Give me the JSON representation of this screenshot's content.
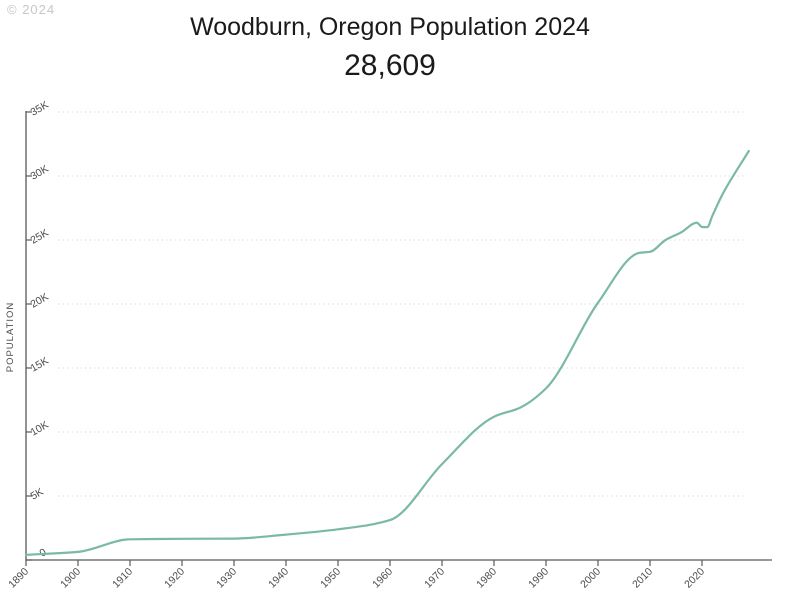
{
  "watermark": "© 2024",
  "header": {
    "title": "Woodburn, Oregon Population 2024",
    "current_population": "28,609"
  },
  "chart_data": {
    "type": "line",
    "title": "Woodburn, Oregon Population 2024",
    "subtitle_value": "28,609",
    "ylabel": "POPULATION",
    "xlabel": "",
    "grid": "horizontal-dotted",
    "legend_position": "none",
    "xlim": [
      1890,
      2030
    ],
    "ylim": [
      0,
      35000
    ],
    "x_ticks": [
      1890,
      1900,
      1910,
      1920,
      1930,
      1940,
      1950,
      1960,
      1970,
      1980,
      1990,
      2000,
      2010,
      2020
    ],
    "y_ticks": [
      {
        "value": 0,
        "label": "0"
      },
      {
        "value": 5000,
        "label": "5K"
      },
      {
        "value": 10000,
        "label": "10K"
      },
      {
        "value": 15000,
        "label": "15K"
      },
      {
        "value": 20000,
        "label": "20K"
      },
      {
        "value": 25000,
        "label": "25K"
      },
      {
        "value": 30000,
        "label": "30K"
      },
      {
        "value": 35000,
        "label": "35K"
      }
    ],
    "series": [
      {
        "name": "Population",
        "points": [
          [
            1890,
            405
          ],
          [
            1900,
            634
          ],
          [
            1910,
            1616
          ],
          [
            1920,
            1656
          ],
          [
            1930,
            1675
          ],
          [
            1940,
            1982
          ],
          [
            1950,
            2395
          ],
          [
            1960,
            3120
          ],
          [
            1970,
            7495
          ],
          [
            1980,
            11196
          ],
          [
            1985,
            11900
          ],
          [
            1990,
            13404
          ],
          [
            2000,
            20100
          ],
          [
            2008,
            24000
          ],
          [
            2010,
            24080
          ],
          [
            2013,
            25000
          ],
          [
            2016,
            25600
          ],
          [
            2019,
            26350
          ],
          [
            2020,
            26013
          ],
          [
            2021,
            26000
          ],
          [
            2022,
            26900
          ],
          [
            2024,
            28609
          ],
          [
            2029,
            31950
          ]
        ]
      }
    ]
  },
  "colors": {
    "line": "#7ab9a5",
    "axis": "#595959",
    "tick_label": "#4d4d4d",
    "gridline": "#dcdcdc",
    "title": "#1a1a1a",
    "watermark": "#c6c6c6",
    "background": "#ffffff"
  }
}
